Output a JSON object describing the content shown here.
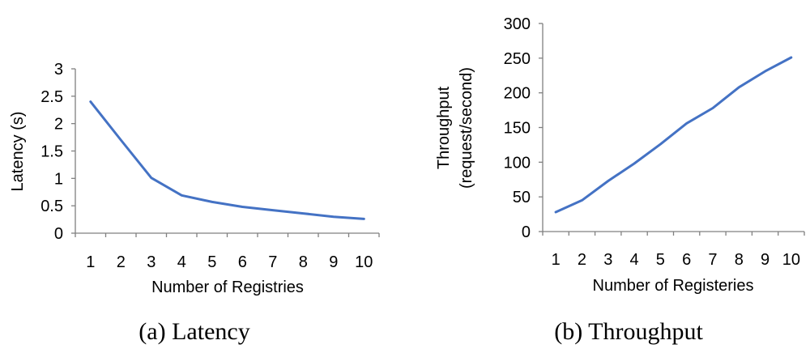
{
  "chart_data": [
    {
      "type": "line",
      "caption": "(a) Latency",
      "xlabel": "Number of Registries",
      "ylabel": "Latency (s)",
      "categories": [
        "1",
        "2",
        "3",
        "4",
        "5",
        "6",
        "7",
        "8",
        "9",
        "10"
      ],
      "yticks": [
        "0",
        "0.5",
        "1",
        "1.5",
        "2",
        "2.5",
        "3"
      ],
      "ylim": [
        0,
        3
      ],
      "grid": false,
      "series": [
        {
          "values": [
            2.4,
            1.7,
            1.01,
            0.69,
            0.57,
            0.48,
            0.42,
            0.36,
            0.3,
            0.26
          ],
          "color": "#4472c4"
        }
      ]
    },
    {
      "type": "line",
      "caption": "(b) Throughput",
      "xlabel": "Number of Registeries",
      "ylabel_lines": [
        "Throughput",
        "(request/second)"
      ],
      "categories": [
        "1",
        "2",
        "3",
        "4",
        "5",
        "6",
        "7",
        "8",
        "9",
        "10"
      ],
      "yticks": [
        "0",
        "50",
        "100",
        "150",
        "200",
        "250",
        "300"
      ],
      "ylim": [
        0,
        300
      ],
      "grid": false,
      "series": [
        {
          "values": [
            28,
            45,
            73,
            98,
            126,
            156,
            178,
            208,
            231,
            251
          ],
          "color": "#4472c4"
        }
      ]
    }
  ]
}
